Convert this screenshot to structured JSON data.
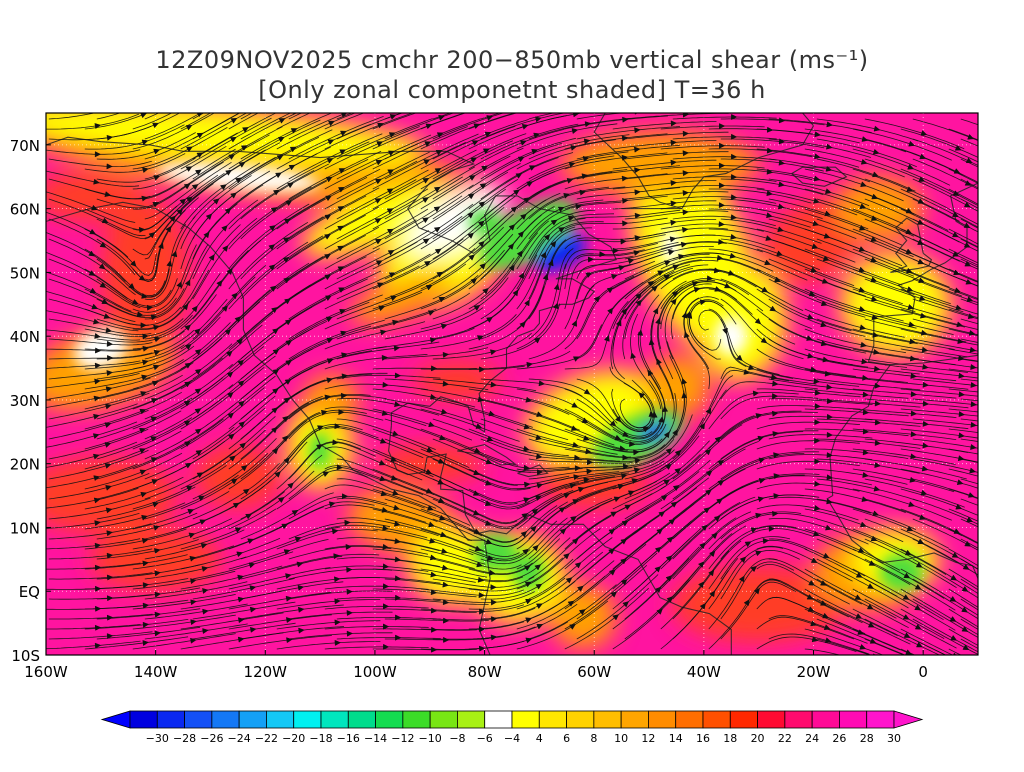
{
  "title": {
    "line1": "12Z09NOV2025 cmchr 200−850mb vertical shear (ms⁻¹)",
    "line2": "[Only zonal componetnt shaded] T=36 h"
  },
  "axes": {
    "lat_labels": [
      "70N",
      "60N",
      "50N",
      "40N",
      "30N",
      "20N",
      "10N",
      "EQ",
      "10S"
    ],
    "lat_values": [
      70,
      60,
      50,
      40,
      30,
      20,
      10,
      0,
      -10
    ],
    "lon_labels": [
      "160W",
      "140W",
      "120W",
      "100W",
      "80W",
      "60W",
      "40W",
      "20W",
      "0"
    ],
    "lon_values": [
      -160,
      -140,
      -120,
      -100,
      -80,
      -60,
      -40,
      -20,
      0
    ],
    "lon_range": [
      -160,
      10
    ],
    "lat_range": [
      -10,
      75
    ]
  },
  "colorbar": {
    "labels": [
      "−30",
      "−28",
      "−26",
      "−24",
      "−22",
      "−20",
      "−18",
      "−16",
      "−14",
      "−12",
      "−10",
      "−8",
      "−6",
      "−4",
      "4",
      "6",
      "8",
      "10",
      "12",
      "14",
      "16",
      "18",
      "20",
      "22",
      "24",
      "26",
      "28",
      "30"
    ],
    "colors": [
      "#0000e0",
      "#0a28f0",
      "#1450f5",
      "#1478f5",
      "#14a0f5",
      "#14c8f5",
      "#00f0f0",
      "#00e6be",
      "#00dc8c",
      "#14dc50",
      "#3cdc28",
      "#78e614",
      "#a8f014",
      "#ffffff",
      "#ffff00",
      "#ffe600",
      "#ffd200",
      "#ffbe00",
      "#ffa500",
      "#ff8c00",
      "#ff6e00",
      "#ff5000",
      "#ff2800",
      "#ff0a32",
      "#ff0a6e",
      "#ff0a96",
      "#ff0ab4",
      "#ff14cc"
    ]
  },
  "colors": {
    "strong_positive": "#ff14a0",
    "positive": "#ff3c28",
    "moderate": "#ffa000",
    "weak": "#ffff00",
    "near_zero": "#ffffff",
    "negative": "#50dc3c",
    "strong_negative": "#0a28f0",
    "streamline": "#111111",
    "coastline": "#222222"
  }
}
